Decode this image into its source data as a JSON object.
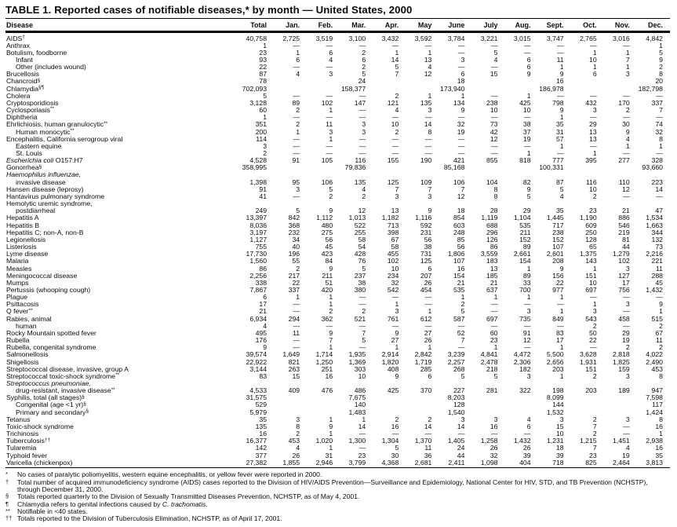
{
  "title": "TABLE 1. Reported cases of notifiable diseases,* by month — United States, 2000",
  "columns": [
    "Disease",
    "Total",
    "Jan.",
    "Feb.",
    "Mar.",
    "Apr.",
    "May",
    "June",
    "July",
    "Aug.",
    "Sept.",
    "Oct.",
    "Nov.",
    "Dec."
  ],
  "rows": [
    {
      "name": "AIDS",
      "sup": "†",
      "values": [
        "40,758",
        "2,725",
        "3,519",
        "3,100",
        "3,432",
        "3,592",
        "3,784",
        "3,221",
        "3,015",
        "3,747",
        "2,765",
        "3,016",
        "4,842"
      ]
    },
    {
      "name": "Anthrax",
      "values": [
        "1",
        "—",
        "—",
        "—",
        "—",
        "—",
        "—",
        "—",
        "—",
        "—",
        "—",
        "—",
        "1"
      ]
    },
    {
      "name": "Botulism, foodborne",
      "values": [
        "23",
        "1",
        "6",
        "2",
        "1",
        "1",
        "—",
        "5",
        "—",
        "—",
        "1",
        "1",
        "5"
      ]
    },
    {
      "name": "Infant",
      "indent": 1,
      "values": [
        "93",
        "6",
        "4",
        "6",
        "14",
        "13",
        "3",
        "4",
        "6",
        "11",
        "10",
        "7",
        "9"
      ]
    },
    {
      "name": "Other (includes wound)",
      "indent": 1,
      "values": [
        "22",
        "—",
        "—",
        "2",
        "5",
        "4",
        "—",
        "—",
        "6",
        "1",
        "1",
        "1",
        "2"
      ]
    },
    {
      "name": "Brucellosis",
      "values": [
        "87",
        "4",
        "3",
        "5",
        "7",
        "12",
        "6",
        "15",
        "9",
        "9",
        "6",
        "3",
        "8"
      ]
    },
    {
      "name": "Chancroid",
      "sup": "§",
      "values": [
        "78",
        "",
        "",
        "24",
        "",
        "",
        "18",
        "",
        "",
        "16",
        "",
        "",
        "20"
      ]
    },
    {
      "name": "Chlamydia",
      "sup": "§¶",
      "values": [
        "702,093",
        "",
        "",
        "158,377",
        "",
        "",
        "173,940",
        "",
        "",
        "186,978",
        "",
        "",
        "182,798"
      ]
    },
    {
      "name": "Cholera",
      "values": [
        "5",
        "—",
        "—",
        "—",
        "2",
        "1",
        "1",
        "—",
        "1",
        "—",
        "—",
        "—",
        "—"
      ]
    },
    {
      "name": "Cryptosporidiosis",
      "values": [
        "3,128",
        "89",
        "102",
        "147",
        "121",
        "135",
        "134",
        "238",
        "425",
        "798",
        "432",
        "170",
        "337"
      ]
    },
    {
      "name": "Cyclosporiasis",
      "sup": "**",
      "values": [
        "60",
        "2",
        "1",
        "—",
        "4",
        "3",
        "9",
        "10",
        "10",
        "9",
        "3",
        "2",
        "7"
      ]
    },
    {
      "name": "Diphtheria",
      "values": [
        "1",
        "—",
        "—",
        "—",
        "—",
        "—",
        "—",
        "—",
        "—",
        "1",
        "—",
        "—",
        "—"
      ]
    },
    {
      "name": "Ehrlichiosis, human granulocytic",
      "sup": "**",
      "values": [
        "351",
        "2",
        "11",
        "3",
        "10",
        "14",
        "32",
        "73",
        "38",
        "35",
        "29",
        "30",
        "74"
      ]
    },
    {
      "name": "Human monocytic",
      "sup": "**",
      "indent": 1,
      "values": [
        "200",
        "1",
        "3",
        "3",
        "2",
        "8",
        "19",
        "42",
        "37",
        "31",
        "13",
        "9",
        "32"
      ]
    },
    {
      "name": "Encephalitis, California serogroup viral",
      "values": [
        "114",
        "—",
        "1",
        "—",
        "—",
        "—",
        "—",
        "12",
        "19",
        "57",
        "13",
        "4",
        "8"
      ]
    },
    {
      "name": "Eastern equine",
      "indent": 1,
      "values": [
        "3",
        "—",
        "—",
        "—",
        "—",
        "—",
        "—",
        "—",
        "—",
        "1",
        "—",
        "1",
        "1"
      ]
    },
    {
      "name": "St. Louis",
      "indent": 1,
      "values": [
        "2",
        "—",
        "—",
        "—",
        "—",
        "—",
        "—",
        "—",
        "1",
        "—",
        "1",
        "—",
        "—"
      ]
    },
    {
      "name": "Escherichia coli",
      "italic": true,
      "suffix": " O157:H7",
      "values": [
        "4,528",
        "91",
        "105",
        "116",
        "155",
        "190",
        "421",
        "855",
        "818",
        "777",
        "395",
        "277",
        "328"
      ]
    },
    {
      "name": "Gonorrhea",
      "sup": "§",
      "values": [
        "358,995",
        "",
        "",
        "79,836",
        "",
        "",
        "85,168",
        "",
        "",
        "100,331",
        "",
        "",
        "93,660"
      ]
    },
    {
      "name": "Haemophilus influenzae,",
      "italic": true,
      "values": [
        "",
        "",
        "",
        "",
        "",
        "",
        "",
        "",
        "",
        "",
        "",
        "",
        ""
      ]
    },
    {
      "name": "invasive disease",
      "indent": 1,
      "values": [
        "1,398",
        "95",
        "106",
        "135",
        "125",
        "109",
        "106",
        "104",
        "82",
        "87",
        "116",
        "110",
        "223"
      ]
    },
    {
      "name": "Hansen disease (leprosy)",
      "values": [
        "91",
        "3",
        "5",
        "4",
        "7",
        "7",
        "7",
        "8",
        "9",
        "5",
        "10",
        "12",
        "14"
      ]
    },
    {
      "name": "Hantavirus pulmonary syndrome",
      "values": [
        "41",
        "—",
        "2",
        "2",
        "3",
        "3",
        "12",
        "8",
        "5",
        "4",
        "2",
        "—",
        "—"
      ]
    },
    {
      "name": "Hemolytic uremic syndrome,",
      "values": [
        "",
        "",
        "",
        "",
        "",
        "",
        "",
        "",
        "",
        "",
        "",
        "",
        ""
      ]
    },
    {
      "name": "postdiarrheal",
      "indent": 1,
      "values": [
        "249",
        "5",
        "9",
        "12",
        "13",
        "9",
        "18",
        "28",
        "29",
        "35",
        "23",
        "21",
        "47"
      ]
    },
    {
      "name": "Hepatitis A",
      "values": [
        "13,397",
        "842",
        "1,112",
        "1,013",
        "1,182",
        "1,116",
        "854",
        "1,119",
        "1,104",
        "1,445",
        "1,190",
        "886",
        "1,534"
      ]
    },
    {
      "name": "Hepatitis B",
      "values": [
        "8,036",
        "368",
        "480",
        "522",
        "713",
        "592",
        "603",
        "688",
        "535",
        "717",
        "609",
        "546",
        "1,663"
      ]
    },
    {
      "name": "Hepatitis C; non-A, non-B",
      "values": [
        "3,197",
        "232",
        "275",
        "255",
        "398",
        "231",
        "248",
        "296",
        "211",
        "238",
        "250",
        "219",
        "344"
      ]
    },
    {
      "name": "Legionellosis",
      "values": [
        "1,127",
        "34",
        "56",
        "58",
        "67",
        "56",
        "85",
        "126",
        "152",
        "152",
        "128",
        "81",
        "132"
      ]
    },
    {
      "name": "Listeriosis",
      "values": [
        "755",
        "40",
        "45",
        "54",
        "58",
        "38",
        "56",
        "86",
        "89",
        "107",
        "65",
        "44",
        "73"
      ]
    },
    {
      "name": "Lyme disease",
      "values": [
        "17,730",
        "196",
        "423",
        "428",
        "455",
        "731",
        "1,806",
        "3,559",
        "2,661",
        "2,601",
        "1,375",
        "1,279",
        "2,216"
      ]
    },
    {
      "name": "Malaria",
      "values": [
        "1,560",
        "55",
        "84",
        "76",
        "102",
        "125",
        "107",
        "183",
        "154",
        "208",
        "143",
        "102",
        "221"
      ]
    },
    {
      "name": "Measles",
      "values": [
        "86",
        "2",
        "9",
        "5",
        "10",
        "6",
        "16",
        "13",
        "1",
        "9",
        "1",
        "3",
        "11"
      ]
    },
    {
      "name": "Meningococcal disease",
      "values": [
        "2,256",
        "217",
        "211",
        "237",
        "234",
        "207",
        "154",
        "185",
        "89",
        "156",
        "151",
        "127",
        "288"
      ]
    },
    {
      "name": "Mumps",
      "values": [
        "338",
        "22",
        "51",
        "38",
        "32",
        "26",
        "21",
        "21",
        "33",
        "22",
        "10",
        "17",
        "45"
      ]
    },
    {
      "name": "Pertussis (whooping cough)",
      "values": [
        "7,867",
        "337",
        "420",
        "380",
        "542",
        "454",
        "535",
        "637",
        "700",
        "977",
        "697",
        "756",
        "1,432"
      ]
    },
    {
      "name": "Plague",
      "values": [
        "6",
        "1",
        "1",
        "—",
        "—",
        "—",
        "1",
        "1",
        "1",
        "1",
        "—",
        "—",
        "—"
      ]
    },
    {
      "name": "Psittacosis",
      "values": [
        "17",
        "—",
        "1",
        "—",
        "1",
        "—",
        "2",
        "—",
        "—",
        "—",
        "1",
        "3",
        "9"
      ]
    },
    {
      "name": "Q fever",
      "sup": "**",
      "values": [
        "21",
        "—",
        "2",
        "2",
        "3",
        "1",
        "5",
        "—",
        "3",
        "1",
        "3",
        "—",
        "1"
      ]
    },
    {
      "name": "Rabies, animal",
      "values": [
        "6,934",
        "294",
        "362",
        "521",
        "761",
        "612",
        "587",
        "697",
        "735",
        "849",
        "543",
        "458",
        "515"
      ]
    },
    {
      "name": "human",
      "indent": 1,
      "values": [
        "4",
        "—",
        "—",
        "—",
        "—",
        "—",
        "—",
        "—",
        "—",
        "—",
        "2",
        "—",
        "2"
      ]
    },
    {
      "name": "Rocky Mountain spotted fever",
      "values": [
        "495",
        "11",
        "9",
        "7",
        "9",
        "27",
        "52",
        "60",
        "91",
        "83",
        "50",
        "29",
        "67"
      ]
    },
    {
      "name": "Rubella",
      "values": [
        "176",
        "—",
        "7",
        "5",
        "27",
        "26",
        "7",
        "23",
        "12",
        "17",
        "22",
        "19",
        "11"
      ]
    },
    {
      "name": "Rubella, congenital syndrome",
      "values": [
        "9",
        "—",
        "1",
        "—",
        "1",
        "1",
        "—",
        "1",
        "—",
        "1",
        "—",
        "2",
        "2"
      ]
    },
    {
      "name": "Salmonellosis",
      "values": [
        "39,574",
        "1,649",
        "1,714",
        "1,935",
        "2,914",
        "2,842",
        "3,239",
        "4,841",
        "4,472",
        "5,500",
        "3,628",
        "2,818",
        "4,022"
      ]
    },
    {
      "name": "Shigellosis",
      "values": [
        "22,922",
        "821",
        "1,250",
        "1,369",
        "1,820",
        "1,719",
        "2,257",
        "2,478",
        "2,306",
        "2,656",
        "1,931",
        "1,825",
        "2,490"
      ]
    },
    {
      "name": "Streptococcal disease, invasive, group A",
      "values": [
        "3,144",
        "263",
        "251",
        "303",
        "408",
        "285",
        "268",
        "218",
        "182",
        "203",
        "151",
        "159",
        "453"
      ]
    },
    {
      "name": "Streptococcal toxic-shock syndrome",
      "sup": "**",
      "values": [
        "83",
        "15",
        "16",
        "10",
        "9",
        "6",
        "5",
        "5",
        "3",
        "1",
        "2",
        "3",
        "8"
      ]
    },
    {
      "name": "Streptococcus pneumoniae,",
      "italic": true,
      "values": [
        "",
        "",
        "",
        "",
        "",
        "",
        "",
        "",
        "",
        "",
        "",
        "",
        ""
      ]
    },
    {
      "name": "drug-resistant, invasive disease",
      "sup": "**",
      "indent": 1,
      "values": [
        "4,533",
        "409",
        "476",
        "486",
        "425",
        "370",
        "227",
        "281",
        "322",
        "198",
        "203",
        "189",
        "947"
      ]
    },
    {
      "name": "Syphilis, total (all stages)",
      "sup": "§",
      "values": [
        "31,575",
        "",
        "",
        "7,675",
        "",
        "",
        "8,203",
        "",
        "",
        "8,099",
        "",
        "",
        "7,598"
      ]
    },
    {
      "name": "Congenital (age <1 yr)",
      "sup": "§",
      "indent": 1,
      "values": [
        "529",
        "",
        "",
        "140",
        "",
        "",
        "128",
        "",
        "",
        "144",
        "",
        "",
        "117"
      ]
    },
    {
      "name": "Primary and secondary",
      "sup": "§",
      "indent": 1,
      "values": [
        "5,979",
        "",
        "",
        "1,483",
        "",
        "",
        "1,540",
        "",
        "",
        "1,532",
        "",
        "",
        "1,424"
      ]
    },
    {
      "name": "Tetanus",
      "values": [
        "35",
        "3",
        "1",
        "1",
        "2",
        "2",
        "3",
        "3",
        "4",
        "3",
        "2",
        "3",
        "8"
      ]
    },
    {
      "name": "Toxic-shock syndrome",
      "values": [
        "135",
        "8",
        "9",
        "14",
        "16",
        "14",
        "14",
        "16",
        "6",
        "15",
        "7",
        "—",
        "16"
      ]
    },
    {
      "name": "Trichinosis",
      "values": [
        "16",
        "2",
        "1",
        "—",
        "—",
        "—",
        "—",
        "—",
        "—",
        "10",
        "2",
        "—",
        "1"
      ]
    },
    {
      "name": "Tuberculosis",
      "sup": "††",
      "values": [
        "16,377",
        "453",
        "1,020",
        "1,300",
        "1,304",
        "1,370",
        "1,405",
        "1,258",
        "1,432",
        "1,231",
        "1,215",
        "1,451",
        "2,938"
      ]
    },
    {
      "name": "Tularemia",
      "values": [
        "142",
        "4",
        "1",
        "—",
        "5",
        "11",
        "24",
        "26",
        "26",
        "18",
        "7",
        "4",
        "16"
      ]
    },
    {
      "name": "Typhoid fever",
      "values": [
        "377",
        "26",
        "31",
        "23",
        "30",
        "36",
        "44",
        "32",
        "39",
        "39",
        "23",
        "19",
        "35"
      ]
    },
    {
      "name": "Varicella (chickenpox)",
      "values": [
        "27,382",
        "1,855",
        "2,946",
        "3,799",
        "4,368",
        "2,681",
        "2,411",
        "1,098",
        "404",
        "718",
        "825",
        "2,464",
        "3,813"
      ]
    }
  ],
  "footnotes": [
    {
      "marker": "*",
      "parts": [
        {
          "text": "No cases of paralytic poliomyelitis, western equine encephalitis, or yellow fever were reported in 2000."
        }
      ]
    },
    {
      "marker": "†",
      "parts": [
        {
          "text": "Total number of acquired immunodeficiency syndrome (AIDS) cases reported to the Division of HIV/AIDS Prevention—Surveillance and Epidemiology, National Center for HIV, STD, and TB Prevention (NCHSTP), through December 31, 2000."
        }
      ]
    },
    {
      "marker": "§",
      "parts": [
        {
          "text": "Totals reported quarterly to the Division of Sexually Transmitted Diseases Prevention, NCHSTP, as of May 4, 2001."
        }
      ]
    },
    {
      "marker": "¶",
      "parts": [
        {
          "text": "Chlamydia refers to genital infections caused by "
        },
        {
          "text": "C. trachomatis",
          "italic": true
        },
        {
          "text": "."
        }
      ]
    },
    {
      "marker": "**",
      "parts": [
        {
          "text": "Notifiable in <40 states."
        }
      ]
    },
    {
      "marker": "††",
      "parts": [
        {
          "text": "Totals reported to the Division of Tuberculosis Elimination, NCHSTP, as of April 17, 2001."
        }
      ]
    }
  ]
}
